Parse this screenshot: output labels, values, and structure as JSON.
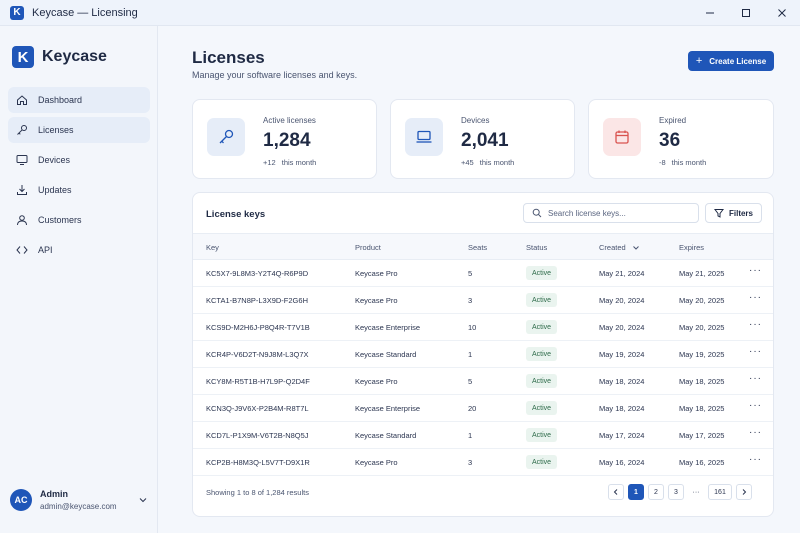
{
  "window": {
    "title": "Keycase — Licensing",
    "logo_letter": "K",
    "controls": [
      "minimize-icon",
      "maximize-icon",
      "close-icon"
    ]
  },
  "sidebar": {
    "brand": "Keycase",
    "brand_letter": "K",
    "items": [
      {
        "label": "Dashboard",
        "icon": "home-icon"
      },
      {
        "label": "Licenses",
        "icon": "key-icon"
      },
      {
        "label": "Devices",
        "icon": "monitor-icon"
      },
      {
        "label": "Updates",
        "icon": "download-icon"
      },
      {
        "label": "Customers",
        "icon": "user-icon"
      },
      {
        "label": "API",
        "icon": "code-icon"
      }
    ],
    "user": {
      "initials": "AC",
      "name": "Admin",
      "email": "admin@keycase.com"
    }
  },
  "header": {
    "title": "Licenses",
    "subtitle": "Manage your software licenses and keys.",
    "create_label": "Create License"
  },
  "stats": [
    {
      "label": "Active licenses",
      "value": "1,284",
      "delta": "+12",
      "delta_suffix": "this month",
      "icon": "key-icon",
      "accent": "#e6edf8"
    },
    {
      "label": "Devices",
      "value": "2,041",
      "delta": "+45",
      "delta_suffix": "this month",
      "icon": "laptop-icon",
      "accent": "#e6edf8"
    },
    {
      "label": "Expired",
      "value": "36",
      "delta": "-8",
      "delta_suffix": "this month",
      "icon": "calendar-icon",
      "accent": "#fbe6e6"
    }
  ],
  "table": {
    "title": "License keys",
    "search_placeholder": "Search license keys...",
    "filters_label": "Filters",
    "columns": [
      "Key",
      "Product",
      "Seats",
      "Status",
      "Created",
      "Expires"
    ],
    "rows": [
      {
        "key": "KC5X7-9L8M3-Y2T4Q-R6P9D",
        "product": "Keycase Pro",
        "seats": "5",
        "status": "Active",
        "created": "May 21, 2024",
        "expires": "May 21, 2025"
      },
      {
        "key": "KCTA1-B7N8P-L3X9D-F2G6H",
        "product": "Keycase Pro",
        "seats": "3",
        "status": "Active",
        "created": "May 20, 2024",
        "expires": "May 20, 2025"
      },
      {
        "key": "KCS9D-M2H6J-P8Q4R-T7V1B",
        "product": "Keycase Enterprise",
        "seats": "10",
        "status": "Active",
        "created": "May 20, 2024",
        "expires": "May 20, 2025"
      },
      {
        "key": "KCR4P-V6D2T-N9J8M-L3Q7X",
        "product": "Keycase Standard",
        "seats": "1",
        "status": "Active",
        "created": "May 19, 2024",
        "expires": "May 19, 2025"
      },
      {
        "key": "KCY8M-R5T1B-H7L9P-Q2D4F",
        "product": "Keycase Pro",
        "seats": "5",
        "status": "Active",
        "created": "May 18, 2024",
        "expires": "May 18, 2025"
      },
      {
        "key": "KCN3Q-J9V6X-P2B4M-R8T7L",
        "product": "Keycase Enterprise",
        "seats": "20",
        "status": "Active",
        "created": "May 18, 2024",
        "expires": "May 18, 2025"
      },
      {
        "key": "KCD7L-P1X9M-V6T2B-N8Q5J",
        "product": "Keycase Standard",
        "seats": "1",
        "status": "Active",
        "created": "May 17, 2024",
        "expires": "May 17, 2025"
      },
      {
        "key": "KCP2B-H8M3Q-L5V7T-D9X1R",
        "product": "Keycase Pro",
        "seats": "3",
        "status": "Active",
        "created": "May 16, 2024",
        "expires": "May 16, 2025"
      }
    ],
    "row_menu": "···",
    "footer": "Showing 1 to 8 of 1,284 results",
    "pages": [
      "1",
      "2",
      "3",
      "···",
      "161"
    ],
    "current_page": "1"
  },
  "colors": {
    "accent": "#1f56b8",
    "status_active_bg": "#eaf4ef",
    "status_active_text": "#2e6b4a",
    "expired_accent": "#d9534f"
  }
}
